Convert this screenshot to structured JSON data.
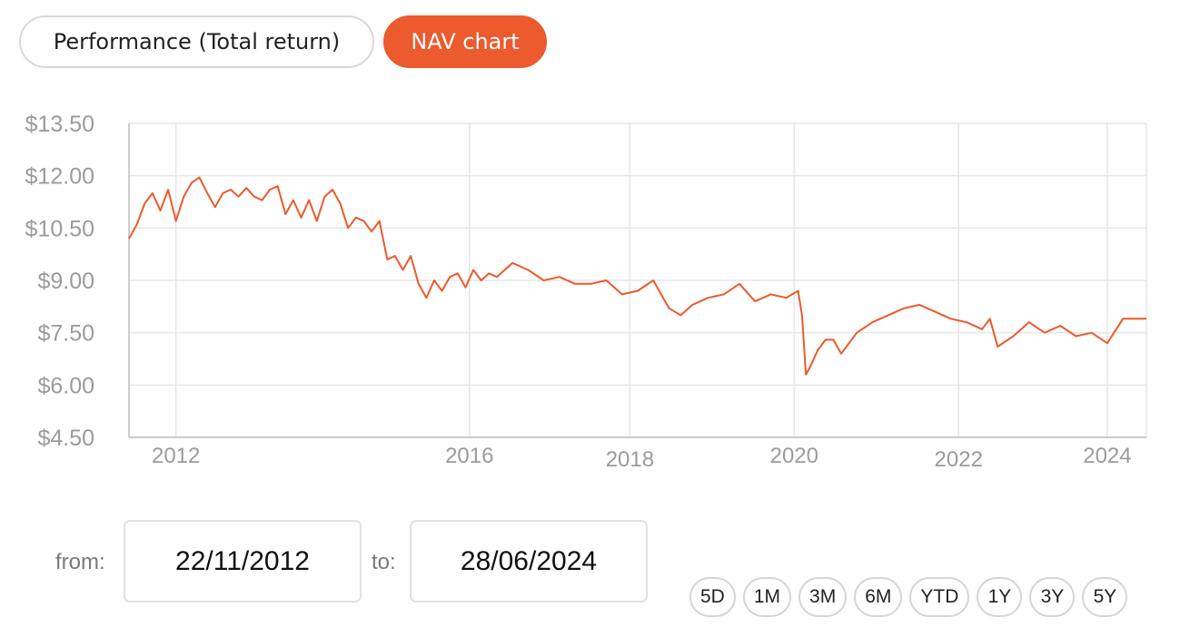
{
  "tabs": {
    "performance_label": "Performance (Total return)",
    "nav_chart_label": "NAV chart"
  },
  "range": {
    "from_label": "from:",
    "from_value": "22/11/2012",
    "to_label": "to:",
    "to_value": "28/06/2024"
  },
  "periods": [
    "5D",
    "1M",
    "3M",
    "6M",
    "YTD",
    "1Y",
    "3Y",
    "5Y"
  ],
  "colors": {
    "accent": "#ec5a2d",
    "grid": "#e6e6e6",
    "tick_text": "#9b9b9b"
  },
  "chart_data": {
    "type": "line",
    "title": "",
    "xlabel": "",
    "ylabel": "",
    "ylim": [
      4.5,
      13.5
    ],
    "yticks": [
      4.5,
      6.0,
      7.5,
      9.0,
      10.5,
      12.0,
      13.5
    ],
    "ytick_labels": [
      "$4.50",
      "$6.00",
      "$7.50",
      "$9.00",
      "$10.50",
      "$12.00",
      "$13.50"
    ],
    "xticks": [
      {
        "label": "2012",
        "x": 2012.1
      },
      {
        "label": "2016",
        "x": 2015.85
      },
      {
        "label": "2018",
        "x": 2017.9
      },
      {
        "label": "2020",
        "x": 2020.0
      },
      {
        "label": "2022",
        "x": 2022.1
      },
      {
        "label": "2024",
        "x": 2024.0
      }
    ],
    "grid": true,
    "series": [
      {
        "color": "#ec5a2d",
        "x": [
          2011.5,
          2011.6,
          2011.7,
          2011.8,
          2011.9,
          2012.0,
          2012.1,
          2012.2,
          2012.3,
          2012.4,
          2012.5,
          2012.6,
          2012.7,
          2012.8,
          2012.9,
          2013.0,
          2013.1,
          2013.2,
          2013.3,
          2013.4,
          2013.5,
          2013.6,
          2013.7,
          2013.8,
          2013.9,
          2014.0,
          2014.1,
          2014.2,
          2014.3,
          2014.4,
          2014.5,
          2014.6,
          2014.7,
          2014.8,
          2014.9,
          2015.0,
          2015.1,
          2015.2,
          2015.3,
          2015.4,
          2015.5,
          2015.6,
          2015.7,
          2015.8,
          2015.9,
          2016.0,
          2016.1,
          2016.2,
          2016.4,
          2016.6,
          2016.8,
          2017.0,
          2017.2,
          2017.4,
          2017.6,
          2017.8,
          2018.0,
          2018.2,
          2018.4,
          2018.55,
          2018.7,
          2018.9,
          2019.1,
          2019.3,
          2019.5,
          2019.7,
          2019.9,
          2020.05,
          2020.1,
          2020.15,
          2020.2,
          2020.3,
          2020.4,
          2020.5,
          2020.6,
          2020.8,
          2021.0,
          2021.2,
          2021.4,
          2021.6,
          2021.8,
          2022.0,
          2022.2,
          2022.4,
          2022.5,
          2022.6,
          2022.8,
          2023.0,
          2023.2,
          2023.4,
          2023.6,
          2023.8,
          2024.0,
          2024.2,
          2024.4,
          2024.5
        ],
        "y": [
          10.2,
          10.6,
          11.2,
          11.5,
          11.0,
          11.6,
          10.7,
          11.4,
          11.8,
          11.95,
          11.5,
          11.1,
          11.5,
          11.6,
          11.4,
          11.65,
          11.4,
          11.3,
          11.6,
          11.7,
          10.9,
          11.3,
          10.8,
          11.3,
          10.7,
          11.4,
          11.6,
          11.2,
          10.5,
          10.8,
          10.7,
          10.4,
          10.7,
          9.6,
          9.7,
          9.3,
          9.7,
          8.9,
          8.5,
          9.0,
          8.7,
          9.1,
          9.2,
          8.8,
          9.3,
          9.0,
          9.2,
          9.1,
          9.5,
          9.3,
          9.0,
          9.1,
          8.9,
          8.9,
          9.0,
          8.6,
          8.7,
          9.0,
          8.2,
          8.0,
          8.3,
          8.5,
          8.6,
          8.9,
          8.4,
          8.6,
          8.5,
          8.7,
          8.0,
          6.3,
          6.5,
          7.0,
          7.3,
          7.3,
          6.9,
          7.5,
          7.8,
          8.0,
          8.2,
          8.3,
          8.1,
          7.9,
          7.8,
          7.6,
          7.9,
          7.1,
          7.4,
          7.8,
          7.5,
          7.7,
          7.4,
          7.5,
          7.2,
          7.9,
          7.9,
          7.9
        ]
      }
    ]
  }
}
